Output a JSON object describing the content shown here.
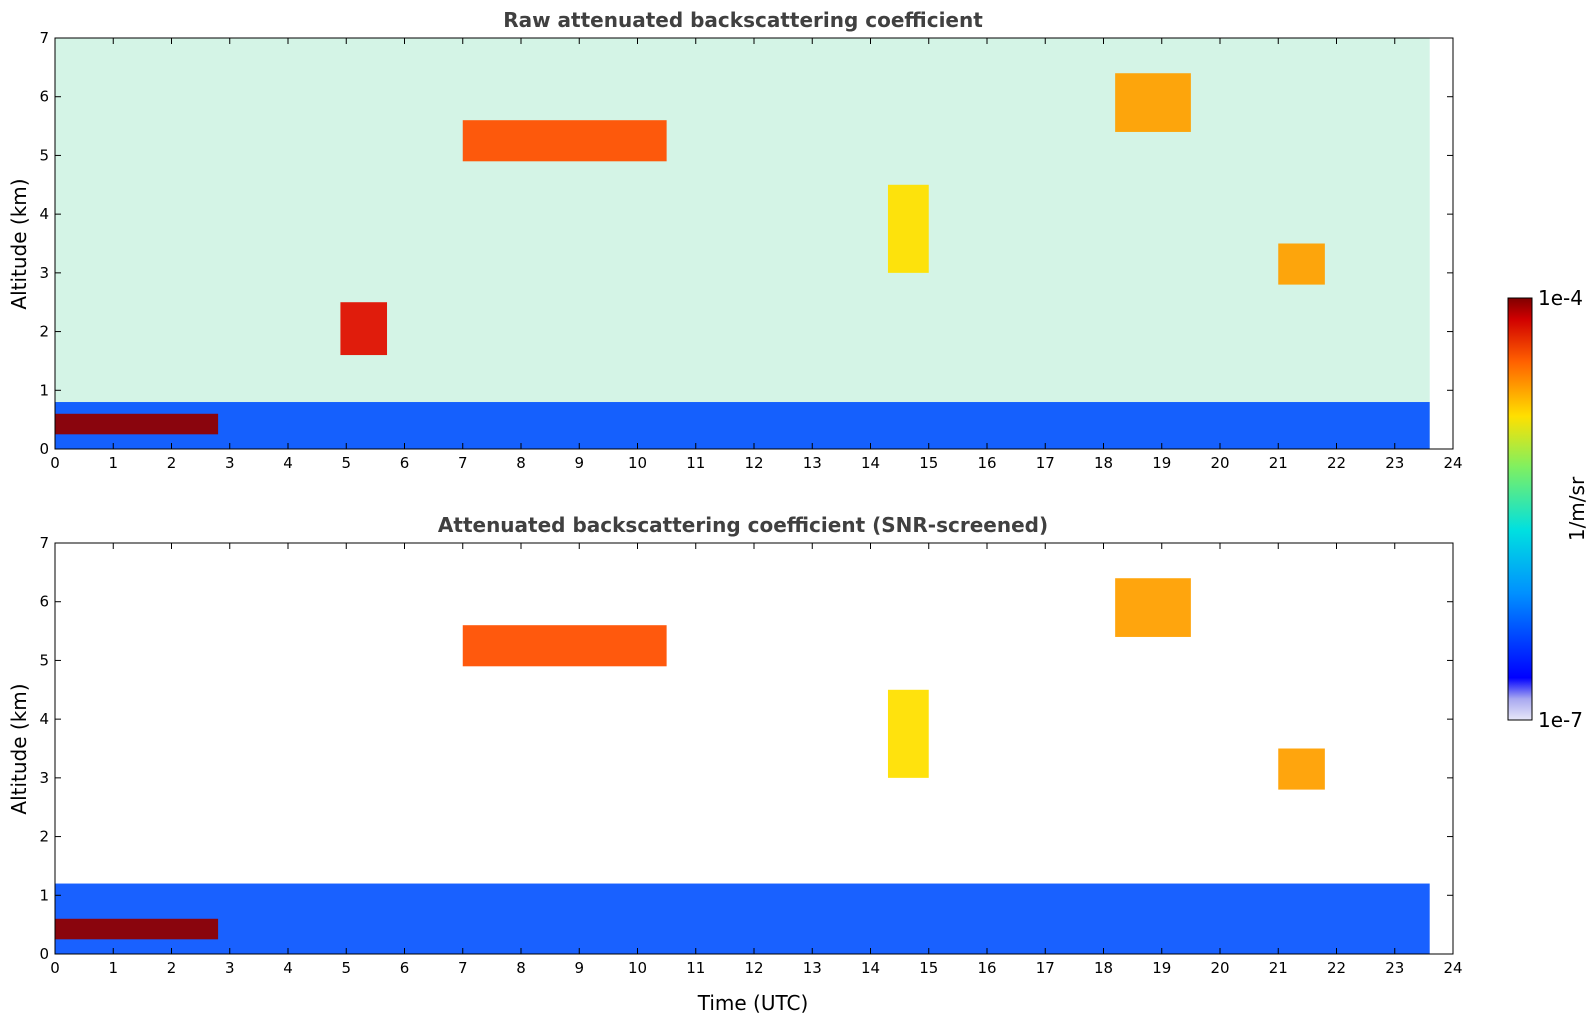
{
  "chart_data": [
    {
      "type": "heatmap",
      "title": "Raw attenuated backscattering coefficient",
      "xlabel": "",
      "ylabel": "Altitude (km)",
      "xlim": [
        0,
        24
      ],
      "ylim": [
        0,
        7
      ],
      "x_ticks": [
        "0",
        "1",
        "2",
        "3",
        "4",
        "5",
        "6",
        "7",
        "8",
        "9",
        "10",
        "11",
        "12",
        "13",
        "14",
        "15",
        "16",
        "17",
        "18",
        "19",
        "20",
        "21",
        "22",
        "23",
        "24"
      ],
      "y_ticks": [
        "0",
        "1",
        "2",
        "3",
        "4",
        "5",
        "6",
        "7"
      ],
      "features": [
        {
          "name": "boundary layer",
          "t_start": 0,
          "t_end": 23.6,
          "alt_bottom": 0,
          "alt_top": 0.8,
          "level": 0.3
        },
        {
          "name": "low cloud",
          "t_start": 0,
          "t_end": 2.8,
          "alt_bottom": 0.25,
          "alt_top": 0.6,
          "level": 1.0
        },
        {
          "name": "cirrus",
          "t_start": 7,
          "t_end": 10.5,
          "alt_bottom": 4.9,
          "alt_top": 5.6,
          "level": 0.85
        },
        {
          "name": "cirrus",
          "t_start": 14.3,
          "t_end": 15,
          "alt_bottom": 3,
          "alt_top": 4.5,
          "level": 0.72
        },
        {
          "name": "cirrus",
          "t_start": 18.2,
          "t_end": 19.5,
          "alt_bottom": 5.4,
          "alt_top": 6.4,
          "level": 0.8
        },
        {
          "name": "cirrus",
          "t_start": 21,
          "t_end": 21.8,
          "alt_bottom": 2.8,
          "alt_top": 3.5,
          "level": 0.8
        },
        {
          "name": "mid cloud",
          "t_start": 4.9,
          "t_end": 5.7,
          "alt_bottom": 1.6,
          "alt_top": 2.5,
          "level": 0.95
        }
      ]
    },
    {
      "type": "heatmap",
      "title": "Attenuated backscattering coefficient (SNR-screened)",
      "xlabel": "Time (UTC)",
      "ylabel": "Altitude (km)",
      "xlim": [
        0,
        24
      ],
      "ylim": [
        0,
        7
      ],
      "x_ticks": [
        "0",
        "1",
        "2",
        "3",
        "4",
        "5",
        "6",
        "7",
        "8",
        "9",
        "10",
        "11",
        "12",
        "13",
        "14",
        "15",
        "16",
        "17",
        "18",
        "19",
        "20",
        "21",
        "22",
        "23",
        "24"
      ],
      "y_ticks": [
        "0",
        "1",
        "2",
        "3",
        "4",
        "5",
        "6",
        "7"
      ],
      "features": [
        {
          "name": "boundary layer",
          "t_start": 0,
          "t_end": 23.6,
          "alt_bottom": 0,
          "alt_top": 1.2,
          "level": 0.3
        },
        {
          "name": "low cloud",
          "t_start": 0,
          "t_end": 2.8,
          "alt_bottom": 0.25,
          "alt_top": 0.6,
          "level": 1.0
        },
        {
          "name": "cirrus",
          "t_start": 7,
          "t_end": 10.5,
          "alt_bottom": 4.9,
          "alt_top": 5.6,
          "level": 0.85
        },
        {
          "name": "cirrus",
          "t_start": 14.3,
          "t_end": 15,
          "alt_bottom": 3,
          "alt_top": 4.5,
          "level": 0.72
        },
        {
          "name": "cirrus",
          "t_start": 18.2,
          "t_end": 19.5,
          "alt_bottom": 5.4,
          "alt_top": 6.4,
          "level": 0.8
        },
        {
          "name": "cirrus",
          "t_start": 21,
          "t_end": 21.8,
          "alt_bottom": 2.8,
          "alt_top": 3.5,
          "level": 0.8
        }
      ]
    }
  ],
  "colorbar": {
    "label": "1/m/sr",
    "max_label": "1e-4",
    "min_label": "1e-7",
    "colors": [
      "#e8e8f8",
      "#b8b8f0",
      "#8080ff",
      "#0000ff",
      "#0050ff",
      "#00a0ff",
      "#00d8e8",
      "#30f0b0",
      "#80f060",
      "#d0f020",
      "#ffe000",
      "#ffa000",
      "#ff5000",
      "#e01000",
      "#900000"
    ]
  }
}
